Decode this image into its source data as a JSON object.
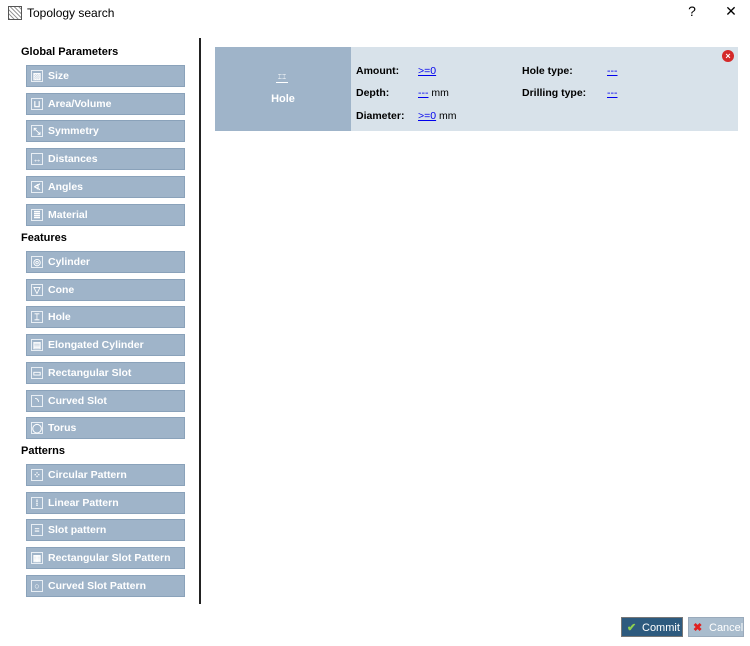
{
  "window": {
    "title": "Topology search",
    "help": "?",
    "close": "✕"
  },
  "sections": [
    {
      "title": "Global Parameters",
      "items": [
        {
          "label": "Size",
          "icon": "size-icon"
        },
        {
          "label": "Area/Volume",
          "icon": "area-volume-icon"
        },
        {
          "label": "Symmetry",
          "icon": "symmetry-icon"
        },
        {
          "label": "Distances",
          "icon": "distances-icon"
        },
        {
          "label": "Angles",
          "icon": "angles-icon"
        },
        {
          "label": "Material",
          "icon": "material-icon"
        }
      ]
    },
    {
      "title": "Features",
      "items": [
        {
          "label": "Cylinder",
          "icon": "cylinder-icon"
        },
        {
          "label": "Cone",
          "icon": "cone-icon"
        },
        {
          "label": "Hole",
          "icon": "hole-icon"
        },
        {
          "label": "Elongated Cylinder",
          "icon": "elongated-cylinder-icon"
        },
        {
          "label": "Rectangular Slot",
          "icon": "rectangular-slot-icon"
        },
        {
          "label": "Curved Slot",
          "icon": "curved-slot-icon"
        },
        {
          "label": "Torus",
          "icon": "torus-icon"
        }
      ]
    },
    {
      "title": "Patterns",
      "items": [
        {
          "label": "Circular Pattern",
          "icon": "circular-pattern-icon"
        },
        {
          "label": "Linear Pattern",
          "icon": "linear-pattern-icon"
        },
        {
          "label": "Slot pattern",
          "icon": "slot-pattern-icon"
        },
        {
          "label": "Rectangular Slot Pattern",
          "icon": "rectangular-slot-pattern-icon"
        },
        {
          "label": "Curved Slot Pattern",
          "icon": "curved-slot-pattern-icon"
        }
      ]
    }
  ],
  "card": {
    "title": "Hole",
    "amount_label": "Amount:",
    "amount_value": ">=0",
    "depth_label": "Depth:",
    "depth_value": "---",
    "depth_unit": "mm",
    "diameter_label": "Diameter:",
    "diameter_value": ">=0",
    "diameter_unit": "mm",
    "hole_type_label": "Hole type:",
    "hole_type_value": "---",
    "drilling_type_label": "Drilling type:",
    "drilling_type_value": "---"
  },
  "footer": {
    "commit": "Commit",
    "cancel": "Cancel"
  },
  "colors": {
    "button": "#9fb4c9",
    "card": "#d8e2ea",
    "commit": "#2d5a7e",
    "cancel": "#a9bccd"
  }
}
